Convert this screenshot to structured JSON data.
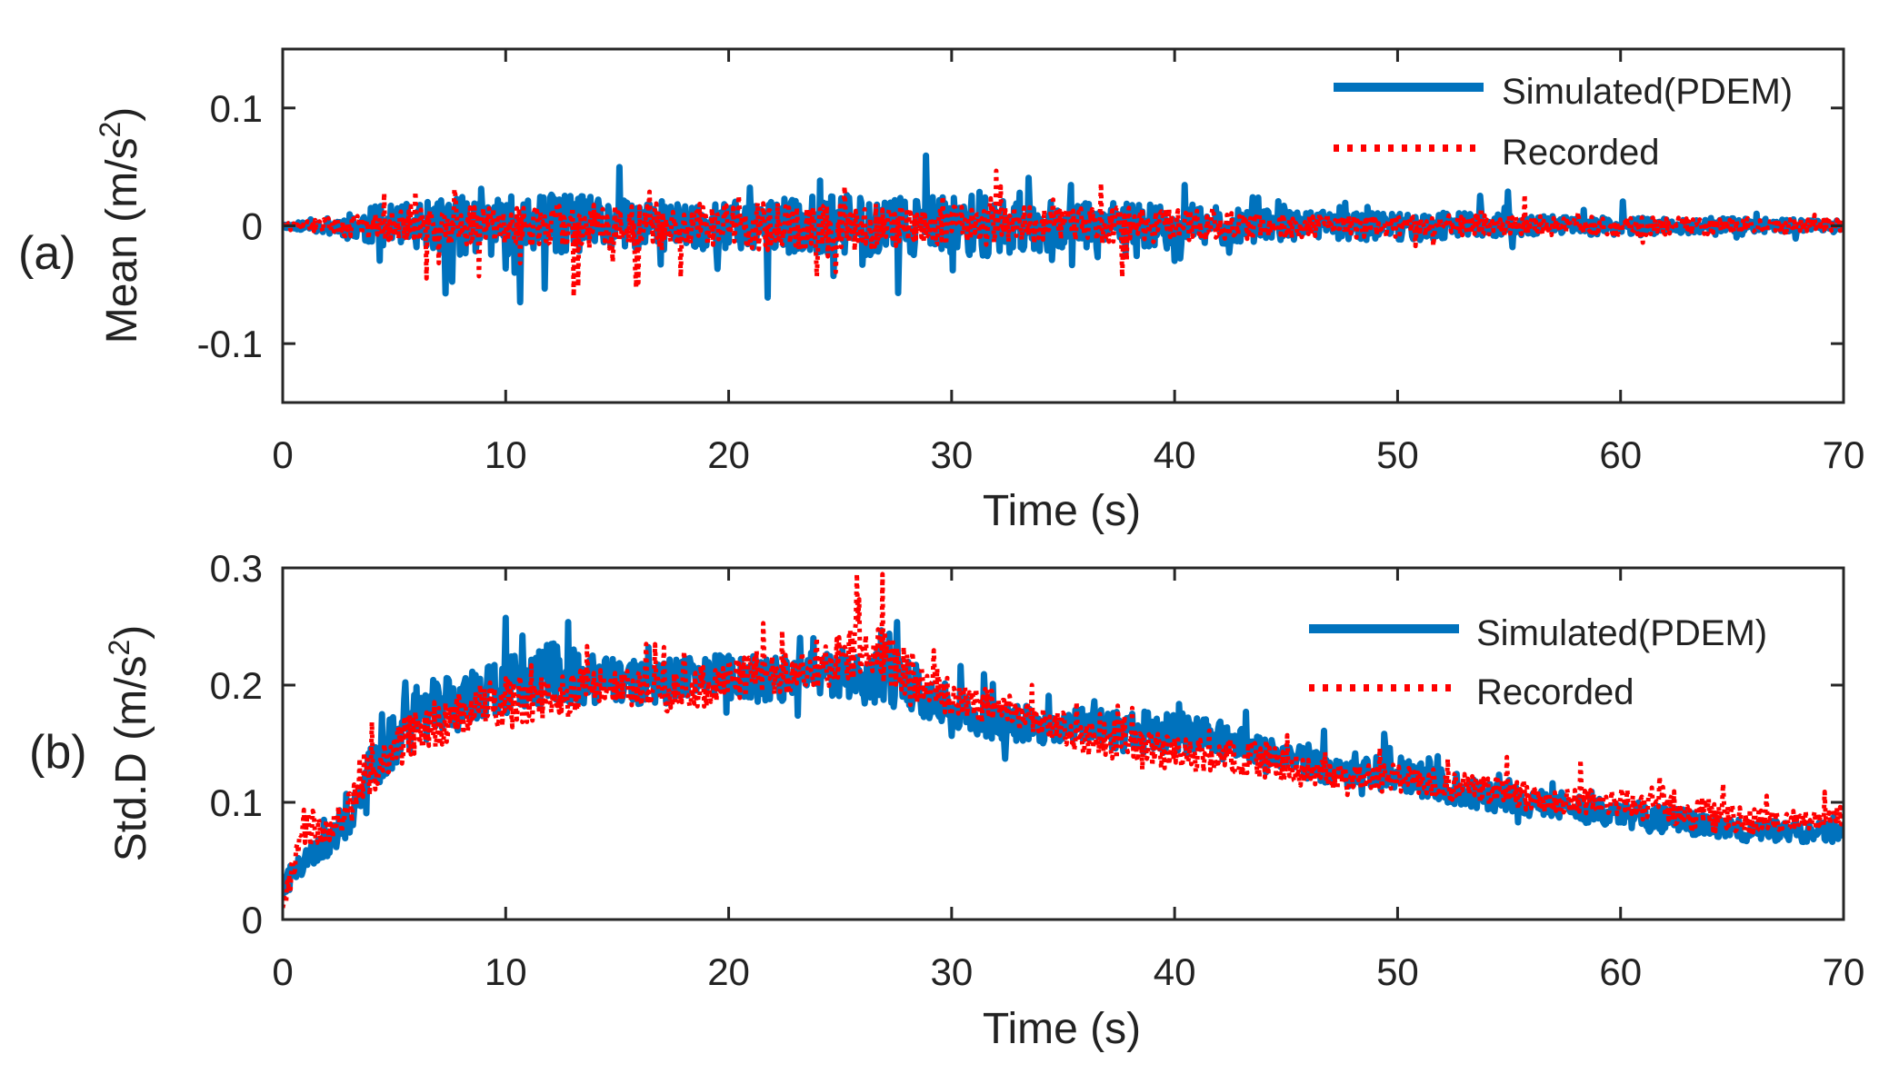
{
  "chart_data": [
    {
      "panel_id": "a",
      "panel_label": "(a)",
      "type": "line",
      "title": "",
      "xlabel": "Time (s)",
      "ylabel_main": "Mean (m/s",
      "ylabel_sup": "2",
      "ylabel_close": ")",
      "xlim": [
        0,
        70
      ],
      "ylim": [
        -0.15,
        0.15
      ],
      "xticks": [
        0,
        10,
        20,
        30,
        40,
        50,
        60,
        70
      ],
      "xtick_labels": [
        "0",
        "10",
        "20",
        "30",
        "40",
        "50",
        "60",
        "70"
      ],
      "yticks": [
        -0.1,
        0,
        0.1
      ],
      "ytick_labels": [
        "-0.1",
        "0",
        "0.1"
      ],
      "grid": false,
      "legend_position": "top-right",
      "envelope": {
        "t": [
          0,
          2,
          4,
          6,
          8,
          10,
          12,
          14,
          16,
          18,
          20,
          22,
          24,
          26,
          28,
          30,
          32,
          34,
          36,
          38,
          40,
          42,
          44,
          46,
          48,
          50,
          52,
          54,
          56,
          58,
          60,
          62,
          64,
          66,
          68,
          70
        ],
        "simulated_amplitude": [
          0.003,
          0.012,
          0.03,
          0.035,
          0.045,
          0.045,
          0.05,
          0.045,
          0.04,
          0.04,
          0.038,
          0.04,
          0.048,
          0.05,
          0.045,
          0.045,
          0.048,
          0.04,
          0.035,
          0.035,
          0.035,
          0.03,
          0.025,
          0.022,
          0.022,
          0.022,
          0.02,
          0.018,
          0.016,
          0.015,
          0.014,
          0.013,
          0.012,
          0.011,
          0.01,
          0.01
        ],
        "recorded_amplitude": [
          0.003,
          0.012,
          0.022,
          0.025,
          0.03,
          0.028,
          0.035,
          0.035,
          0.035,
          0.035,
          0.035,
          0.04,
          0.04,
          0.035,
          0.03,
          0.03,
          0.03,
          0.028,
          0.028,
          0.028,
          0.025,
          0.022,
          0.02,
          0.02,
          0.018,
          0.018,
          0.017,
          0.016,
          0.015,
          0.014,
          0.014,
          0.014,
          0.013,
          0.012,
          0.01,
          0.01
        ]
      },
      "series": [
        {
          "name": "Simulated(PDEM)",
          "color": "#0072BD",
          "style": "solid"
        },
        {
          "name": "Recorded",
          "color": "#FF0000",
          "style": "dotted"
        }
      ]
    },
    {
      "panel_id": "b",
      "panel_label": "(b)",
      "type": "line",
      "title": "",
      "xlabel": "Time (s)",
      "ylabel_main": "Std.D (m/s",
      "ylabel_sup": "2",
      "ylabel_close": ")",
      "xlim": [
        0,
        70
      ],
      "ylim": [
        0,
        0.3
      ],
      "xticks": [
        0,
        10,
        20,
        30,
        40,
        50,
        60,
        70
      ],
      "xtick_labels": [
        "0",
        "10",
        "20",
        "30",
        "40",
        "50",
        "60",
        "70"
      ],
      "yticks": [
        0,
        0.1,
        0.2,
        0.3
      ],
      "ytick_labels": [
        "0",
        "0.1",
        "0.2",
        "0.3"
      ],
      "grid": false,
      "legend_position": "top-right",
      "trend": {
        "t": [
          0,
          1,
          2,
          3,
          4,
          5,
          6,
          8,
          10,
          12,
          14,
          16,
          18,
          20,
          22,
          24,
          26,
          27,
          28,
          30,
          32,
          34,
          36,
          38,
          40,
          42,
          44,
          46,
          48,
          50,
          52,
          54,
          56,
          58,
          60,
          62,
          64,
          66,
          68,
          70
        ],
        "simulated_mean": [
          0.03,
          0.05,
          0.065,
          0.085,
          0.125,
          0.155,
          0.175,
          0.185,
          0.2,
          0.21,
          0.205,
          0.2,
          0.205,
          0.205,
          0.205,
          0.21,
          0.205,
          0.215,
          0.2,
          0.18,
          0.17,
          0.165,
          0.165,
          0.16,
          0.16,
          0.155,
          0.14,
          0.135,
          0.125,
          0.125,
          0.115,
          0.105,
          0.1,
          0.095,
          0.09,
          0.085,
          0.08,
          0.075,
          0.075,
          0.075
        ],
        "recorded_mean": [
          0.01,
          0.08,
          0.075,
          0.095,
          0.125,
          0.145,
          0.16,
          0.175,
          0.185,
          0.19,
          0.195,
          0.195,
          0.195,
          0.205,
          0.21,
          0.21,
          0.23,
          0.225,
          0.21,
          0.19,
          0.18,
          0.17,
          0.155,
          0.15,
          0.14,
          0.14,
          0.135,
          0.125,
          0.12,
          0.12,
          0.115,
          0.11,
          0.105,
          0.1,
          0.1,
          0.095,
          0.09,
          0.085,
          0.085,
          0.09
        ],
        "simulated_amplitude": [
          0.02,
          0.015,
          0.02,
          0.025,
          0.04,
          0.04,
          0.045,
          0.04,
          0.04,
          0.045,
          0.035,
          0.03,
          0.035,
          0.035,
          0.035,
          0.03,
          0.035,
          0.06,
          0.04,
          0.03,
          0.03,
          0.025,
          0.025,
          0.03,
          0.03,
          0.025,
          0.025,
          0.025,
          0.025,
          0.025,
          0.025,
          0.02,
          0.02,
          0.02,
          0.02,
          0.02,
          0.015,
          0.015,
          0.015,
          0.015
        ],
        "recorded_amplitude": [
          0.01,
          0.03,
          0.02,
          0.025,
          0.03,
          0.03,
          0.035,
          0.035,
          0.035,
          0.035,
          0.03,
          0.03,
          0.03,
          0.03,
          0.03,
          0.03,
          0.045,
          0.045,
          0.035,
          0.03,
          0.025,
          0.025,
          0.025,
          0.025,
          0.025,
          0.025,
          0.025,
          0.02,
          0.02,
          0.02,
          0.02,
          0.02,
          0.02,
          0.02,
          0.02,
          0.02,
          0.025,
          0.02,
          0.015,
          0.015
        ]
      },
      "series": [
        {
          "name": "Simulated(PDEM)",
          "color": "#0072BD",
          "style": "solid"
        },
        {
          "name": "Recorded",
          "color": "#FF0000",
          "style": "dotted"
        }
      ]
    }
  ]
}
